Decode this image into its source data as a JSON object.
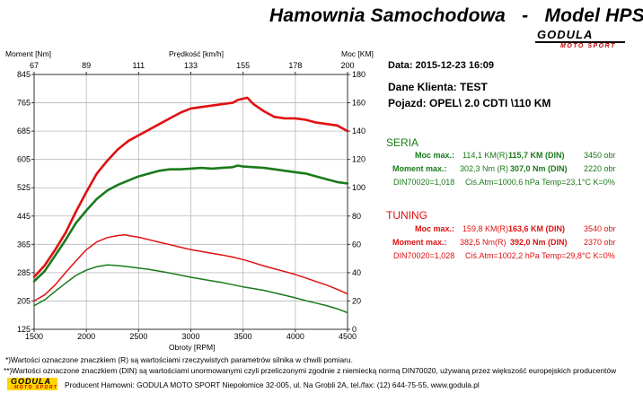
{
  "header": {
    "title": "Hamownia Samochodowa   -   Model HPS-",
    "logo_text": "GODULA",
    "logo_sub": "MOTO SPORT"
  },
  "chart_data": {
    "type": "line",
    "axes": {
      "bottom": {
        "label": "Obroty [RPM]",
        "range": [
          1500,
          4500
        ],
        "ticks": [
          "1500",
          "2000",
          "2500",
          "3000",
          "3500",
          "4000",
          "4500"
        ]
      },
      "top": {
        "label": "Prędkość [km/h]",
        "range": [
          67,
          200
        ],
        "ticks": [
          "67",
          "89",
          "111",
          "133",
          "155",
          "178",
          "200"
        ]
      },
      "left": {
        "label": "Moment [Nm]",
        "range": [
          125,
          845
        ],
        "ticks": [
          "125",
          "205",
          "285",
          "365",
          "445",
          "525",
          "605",
          "685",
          "765",
          "845"
        ]
      },
      "right": {
        "label": "Moc [KM]",
        "range": [
          0,
          180
        ],
        "ticks": [
          "0",
          "20",
          "40",
          "60",
          "80",
          "100",
          "120",
          "140",
          "160",
          "180"
        ]
      }
    },
    "grid": true,
    "series": [
      {
        "name": "",
        "color": "#e01010",
        "axis": "right",
        "stroke": 2.6,
        "x": [
          1500,
          1600,
          1700,
          1800,
          1900,
          2000,
          2100,
          2200,
          2300,
          2400,
          2500,
          2600,
          2700,
          2800,
          2900,
          3000,
          3100,
          3200,
          3300,
          3400,
          3450,
          3540,
          3600,
          3700,
          3800,
          3900,
          4000,
          4100,
          4200,
          4300,
          4400,
          4500
        ],
        "y": [
          37,
          45,
          56,
          68,
          83,
          97,
          110,
          119,
          127,
          133,
          137,
          141,
          145,
          149,
          153,
          156,
          157,
          158,
          159,
          160,
          162,
          163.6,
          159,
          154,
          150,
          149,
          149,
          148,
          146,
          145,
          144,
          140
        ]
      },
      {
        "name": "",
        "color": "#1a7a1a",
        "axis": "right",
        "stroke": 2.6,
        "x": [
          1500,
          1600,
          1700,
          1800,
          1900,
          2000,
          2100,
          2200,
          2300,
          2400,
          2500,
          2600,
          2700,
          2800,
          2900,
          3000,
          3100,
          3200,
          3300,
          3400,
          3450,
          3500,
          3600,
          3700,
          3800,
          3900,
          4000,
          4100,
          4200,
          4300,
          4400,
          4500
        ],
        "y": [
          34,
          41,
          52,
          63,
          75,
          84,
          92,
          98,
          102,
          105,
          108,
          110,
          112,
          113,
          113,
          113.5,
          114,
          113.5,
          114,
          114.5,
          115.7,
          115,
          114.5,
          114,
          113,
          112,
          111,
          110,
          108,
          106,
          104,
          103
        ]
      },
      {
        "name": "",
        "color": "#e01010",
        "axis": "left",
        "stroke": 1.5,
        "x": [
          1500,
          1600,
          1700,
          1800,
          1900,
          2000,
          2100,
          2200,
          2300,
          2370,
          2400,
          2500,
          2600,
          2700,
          2800,
          2900,
          3000,
          3100,
          3200,
          3300,
          3400,
          3500,
          3600,
          3700,
          3800,
          3900,
          4000,
          4100,
          4200,
          4300,
          4400,
          4500
        ],
        "y": [
          205,
          222,
          250,
          285,
          318,
          350,
          372,
          384,
          390,
          392,
          390,
          385,
          378,
          371,
          364,
          357,
          350,
          345,
          340,
          335,
          329,
          322,
          313,
          304,
          296,
          288,
          280,
          270,
          260,
          250,
          238,
          225
        ]
      },
      {
        "name": "",
        "color": "#1a7a1a",
        "axis": "left",
        "stroke": 1.5,
        "x": [
          1500,
          1600,
          1700,
          1800,
          1900,
          2000,
          2100,
          2200,
          2300,
          2400,
          2500,
          2600,
          2700,
          2800,
          2900,
          3000,
          3100,
          3200,
          3300,
          3400,
          3500,
          3600,
          3700,
          3800,
          3900,
          4000,
          4100,
          4200,
          4300,
          4400,
          4500
        ],
        "y": [
          192,
          208,
          232,
          255,
          277,
          292,
          302,
          307,
          305,
          302,
          298,
          294,
          289,
          284,
          278,
          272,
          267,
          262,
          257,
          251,
          245,
          240,
          235,
          228,
          221,
          214,
          206,
          199,
          192,
          183,
          172
        ]
      }
    ]
  },
  "info": {
    "date": "Data: 2015-12-23  16:09",
    "client": "Dane Klienta: TEST",
    "vehicle": "Pojazd:  OPEL\\ 2.0 CDTI \\110 KM"
  },
  "seria": {
    "title": "SERIA",
    "power_label": "Moc max.:",
    "power_r": "114,1 KM(R)",
    "power_din": "115,7 KM (DIN)",
    "power_rpm": "3450 obr",
    "torque_label": "Moment max.:",
    "torque_r": "302,3 Nm (R)",
    "torque_din": "307,0 Nm (DIN)",
    "torque_rpm": "2220 obr",
    "din_factor": "DIN70020=1,018",
    "atm": "Ciś.Atm=1000,6 hPa  Temp=23,1°C  K=0%"
  },
  "tuning": {
    "title": "TUNING",
    "power_label": "Moc max.:",
    "power_r": "159,8 KM(R)",
    "power_din": "163,6 KM (DIN)",
    "power_rpm": "3540 obr",
    "torque_label": "Moment max.:",
    "torque_r": "382,5 Nm(R)",
    "torque_din": "392,0 Nm (DIN)",
    "torque_rpm": "2370 obr",
    "din_factor": "DIN70020=1,028",
    "atm": "Ciś.Atm=1002,2 hPa  Temp=29,8°C  K=0%"
  },
  "footer": {
    "note1": "*)Wartości oznaczone znaczkiem (R) są wartościami rzeczywistych parametrów silnika w chwili pomiaru.",
    "note2": "**)Wartości oznaczone znaczkiem (DIN) są wartościami unormowanymi czyli przeliczonymi zgodnie z niemiecką normą DIN70020, używaną przez większość europejskich producentów",
    "producer": "Producent Hamowni: GODULA MOTO SPORT Niepołomice 32-005, ul. Na Grobli 2A, tel./fax: (12) 644-75-55, www.godula.pl",
    "logo_text": "GODULA",
    "logo_sub": "MOTO SPORT"
  }
}
